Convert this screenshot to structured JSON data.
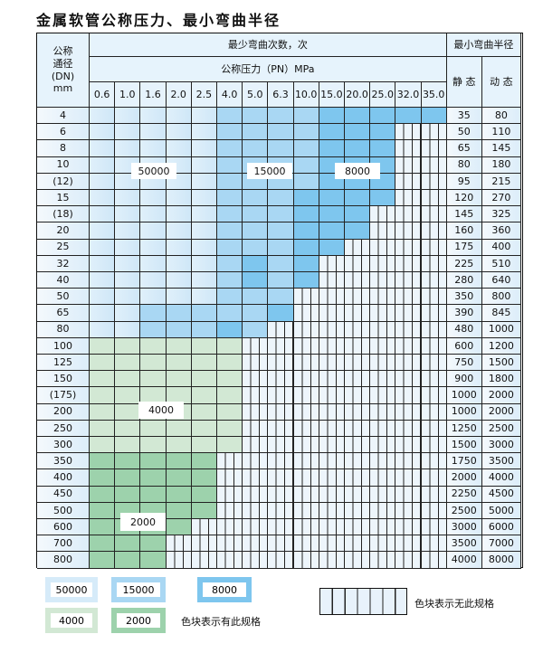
{
  "title": "金属软管公称压力、最小弯曲半径",
  "header": {
    "dn_label": "公称\n通径\n(DN)\nmm",
    "cycles_label": "最少弯曲次数，次",
    "pressure_label": "公称压力（PN）MPa",
    "radius_label": "最小弯曲半径",
    "static_label": "静 态",
    "dynamic_label": "动 态",
    "pressures": [
      "0.6",
      "1.0",
      "1.6",
      "2.0",
      "2.5",
      "4.0",
      "5.0",
      "6.3",
      "10.0",
      "15.0",
      "20.0",
      "25.0",
      "32.0",
      "35.0"
    ]
  },
  "tiers": {
    "a": "50000",
    "b": "15000",
    "c": "8000",
    "d": "4000",
    "e": "2000"
  },
  "colors": {
    "a": "#d6ebf9",
    "b": "#a9d7f3",
    "c": "#7ec6ee",
    "d": "#d2e8d4",
    "e": "#9dd2ac"
  },
  "rows": [
    {
      "dn": "4",
      "static": "35",
      "dynamic": "80",
      "cells": "aaaaabbbbccccc"
    },
    {
      "dn": "6",
      "static": "50",
      "dynamic": "110",
      "cells": "aaaaabbbbccc"
    },
    {
      "dn": "8",
      "static": "65",
      "dynamic": "145",
      "cells": "aaaaabbbbccc"
    },
    {
      "dn": "10",
      "static": "80",
      "dynamic": "180",
      "cells": "aaaaabbbbccc"
    },
    {
      "dn": "(12)",
      "static": "95",
      "dynamic": "215",
      "cells": "aaaaabbbbccc"
    },
    {
      "dn": "15",
      "static": "120",
      "dynamic": "270",
      "cells": "aaaaabbbcccc"
    },
    {
      "dn": "(18)",
      "static": "145",
      "dynamic": "325",
      "cells": "aaaaabbbccc"
    },
    {
      "dn": "20",
      "static": "160",
      "dynamic": "360",
      "cells": "aaaaabbbccc"
    },
    {
      "dn": "25",
      "static": "175",
      "dynamic": "400",
      "cells": "aaaaabbbcc"
    },
    {
      "dn": "32",
      "static": "225",
      "dynamic": "510",
      "cells": "aaaaabcbc"
    },
    {
      "dn": "40",
      "static": "280",
      "dynamic": "640",
      "cells": "aaaaabcbc"
    },
    {
      "dn": "50",
      "static": "350",
      "dynamic": "800",
      "cells": "aaaaabbb"
    },
    {
      "dn": "65",
      "static": "390",
      "dynamic": "845",
      "cells": "aabbbbbc"
    },
    {
      "dn": "80",
      "static": "480",
      "dynamic": "1000",
      "cells": "aabbbcb"
    },
    {
      "dn": "100",
      "static": "600",
      "dynamic": "1200",
      "cells": "dddddd"
    },
    {
      "dn": "125",
      "static": "750",
      "dynamic": "1500",
      "cells": "dddddd"
    },
    {
      "dn": "150",
      "static": "900",
      "dynamic": "1800",
      "cells": "dddddd"
    },
    {
      "dn": "(175)",
      "static": "1000",
      "dynamic": "2000",
      "cells": "dddddd"
    },
    {
      "dn": "200",
      "static": "1000",
      "dynamic": "2000",
      "cells": "dddddd"
    },
    {
      "dn": "250",
      "static": "1250",
      "dynamic": "2500",
      "cells": "dddddd"
    },
    {
      "dn": "300",
      "static": "1500",
      "dynamic": "3000",
      "cells": "dddddd"
    },
    {
      "dn": "350",
      "static": "1750",
      "dynamic": "3500",
      "cells": "eeeee"
    },
    {
      "dn": "400",
      "static": "2000",
      "dynamic": "4000",
      "cells": "eeeee"
    },
    {
      "dn": "450",
      "static": "2250",
      "dynamic": "4500",
      "cells": "eeeee"
    },
    {
      "dn": "500",
      "static": "2500",
      "dynamic": "5000",
      "cells": "eeeee"
    },
    {
      "dn": "600",
      "static": "3000",
      "dynamic": "6000",
      "cells": "eeee"
    },
    {
      "dn": "700",
      "static": "3500",
      "dynamic": "7000",
      "cells": "eee"
    },
    {
      "dn": "800",
      "static": "4000",
      "dynamic": "8000",
      "cells": "eee"
    }
  ],
  "legend": {
    "has_spec": "色块表示有此规格",
    "no_spec": "色块表示无此规格"
  }
}
